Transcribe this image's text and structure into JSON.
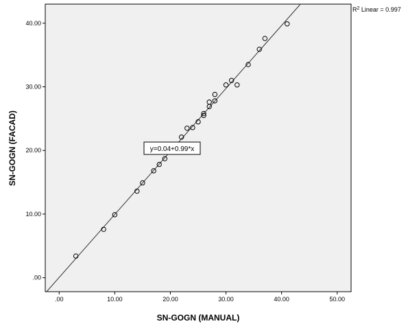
{
  "chart_data": {
    "type": "scatter",
    "xlabel": "SN-GOGN (MANUAL)",
    "ylabel": "SN-GOGN (FACAD)",
    "xlim": [
      -2.5,
      52.5
    ],
    "ylim": [
      -2.2,
      43.0
    ],
    "x_ticks": [
      ".00",
      "10.00",
      "20.00",
      "30.00",
      "40.00",
      "50.00"
    ],
    "y_ticks": [
      ".00",
      "10.00",
      "20.00",
      "30.00",
      "40.00"
    ],
    "points": [
      {
        "x": 3.0,
        "y": 3.4
      },
      {
        "x": 8.0,
        "y": 7.6
      },
      {
        "x": 10.0,
        "y": 9.9
      },
      {
        "x": 14.0,
        "y": 13.6
      },
      {
        "x": 15.0,
        "y": 14.9
      },
      {
        "x": 17.0,
        "y": 16.8
      },
      {
        "x": 18.0,
        "y": 17.8
      },
      {
        "x": 19.0,
        "y": 18.7
      },
      {
        "x": 22.0,
        "y": 22.1
      },
      {
        "x": 23.0,
        "y": 23.5
      },
      {
        "x": 24.0,
        "y": 23.6
      },
      {
        "x": 25.0,
        "y": 24.5
      },
      {
        "x": 26.0,
        "y": 25.5
      },
      {
        "x": 26.0,
        "y": 25.8
      },
      {
        "x": 27.0,
        "y": 26.9
      },
      {
        "x": 27.0,
        "y": 27.6
      },
      {
        "x": 28.0,
        "y": 27.8
      },
      {
        "x": 28.0,
        "y": 28.8
      },
      {
        "x": 30.0,
        "y": 30.3
      },
      {
        "x": 31.0,
        "y": 31.0
      },
      {
        "x": 32.0,
        "y": 30.3
      },
      {
        "x": 34.0,
        "y": 33.5
      },
      {
        "x": 36.0,
        "y": 35.9
      },
      {
        "x": 37.0,
        "y": 37.6
      },
      {
        "x": 41.0,
        "y": 39.9
      }
    ],
    "fit": {
      "intercept": 0.04,
      "slope": 0.99
    },
    "fit_equation": "y=0.04+0.99*x",
    "r2_label": "R",
    "r2_sup": "2",
    "r2_text": " Linear = 0.997",
    "colors": {
      "plot_bg": "#f0f0f0",
      "marker": "#000000",
      "line": "#333333"
    }
  }
}
